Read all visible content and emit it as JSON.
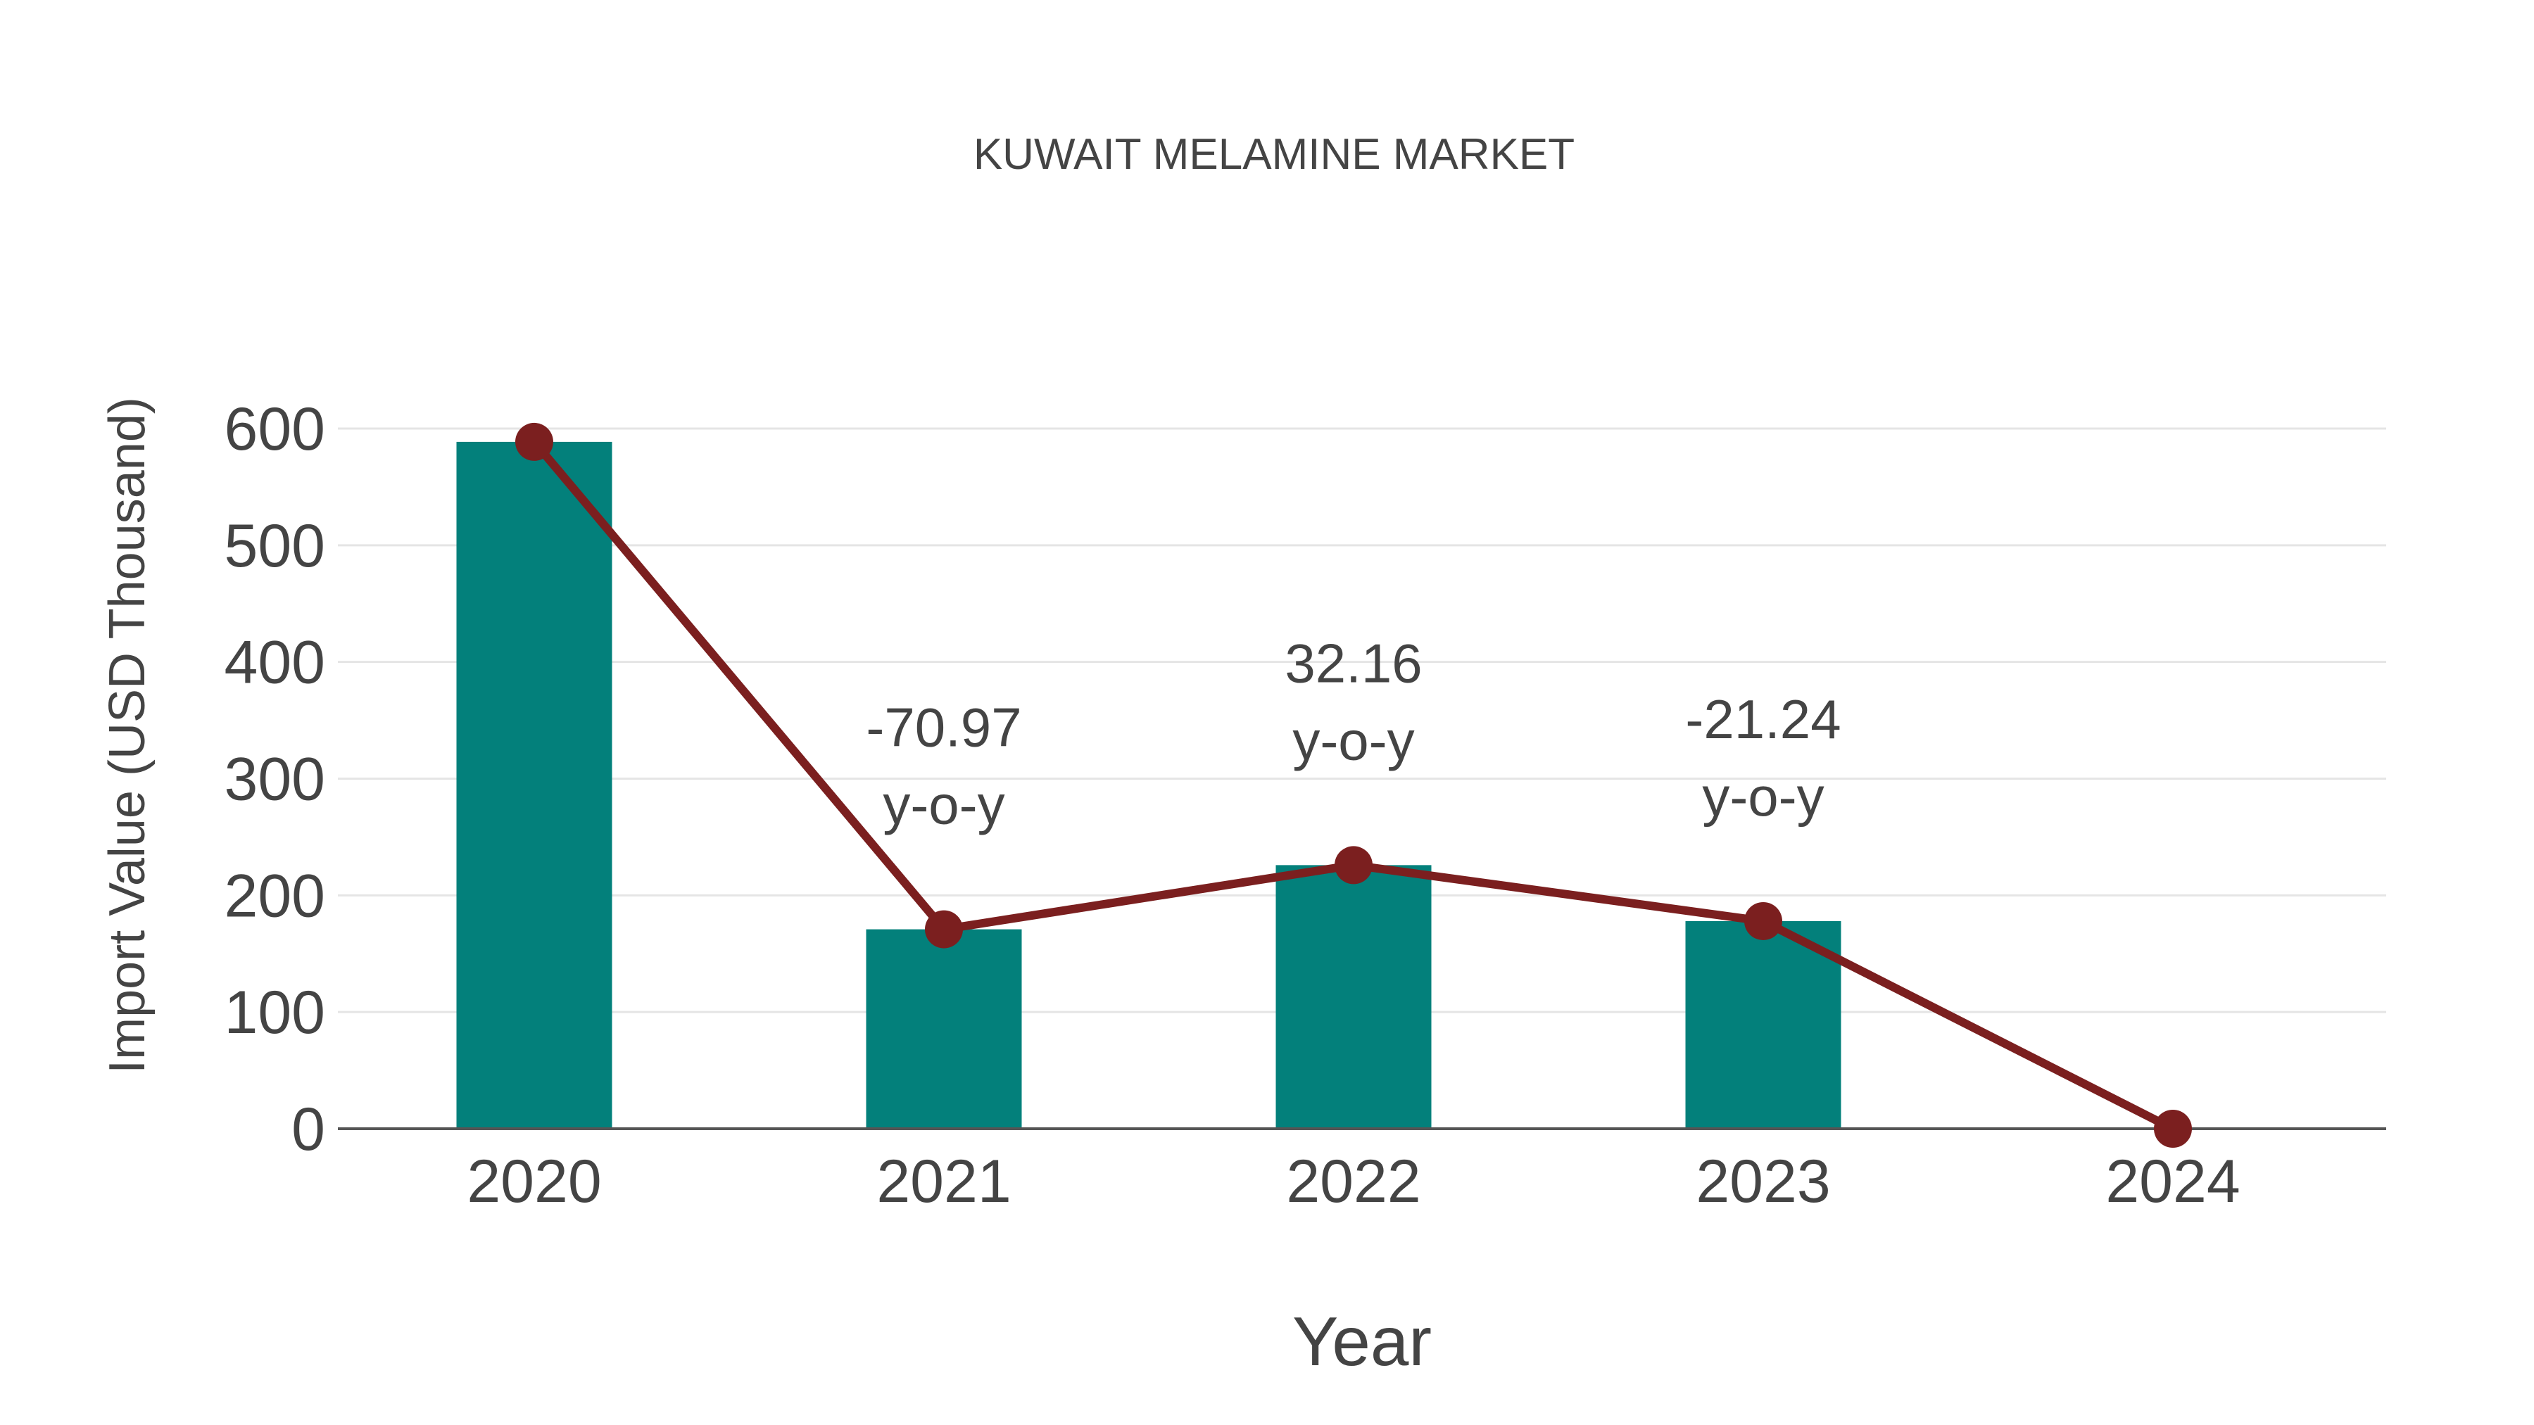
{
  "chart_data": {
    "type": "bar",
    "title": "KUWAIT MELAMINE MARKET",
    "xlabel": "Year",
    "ylabel": "Import Value (USD Thousand)",
    "categories": [
      "2020",
      "2021",
      "2022",
      "2023",
      "2024"
    ],
    "series": [
      {
        "name": "Import Value",
        "type": "bar",
        "color": "#03807B",
        "values": [
          588.6,
          170.9,
          225.9,
          177.9,
          0
        ]
      },
      {
        "name": "Trend",
        "type": "line",
        "color": "#7B1F1F",
        "values": [
          588.6,
          170.9,
          225.9,
          177.9,
          0
        ]
      }
    ],
    "annotations": [
      {
        "category": "2021",
        "value": "-70.97",
        "suffix": "y-o-y"
      },
      {
        "category": "2022",
        "value": "32.16",
        "suffix": "y-o-y"
      },
      {
        "category": "2023",
        "value": "-21.24",
        "suffix": "y-o-y"
      }
    ],
    "yticks": [
      0,
      100,
      200,
      300,
      400,
      500,
      600
    ],
    "ylim": [
      0,
      600
    ],
    "grid": true,
    "legend": "none"
  },
  "colors": {
    "bar": "#03807B",
    "line": "#7B1F1F",
    "text": "#444444",
    "grid": "#e5e5e5"
  }
}
